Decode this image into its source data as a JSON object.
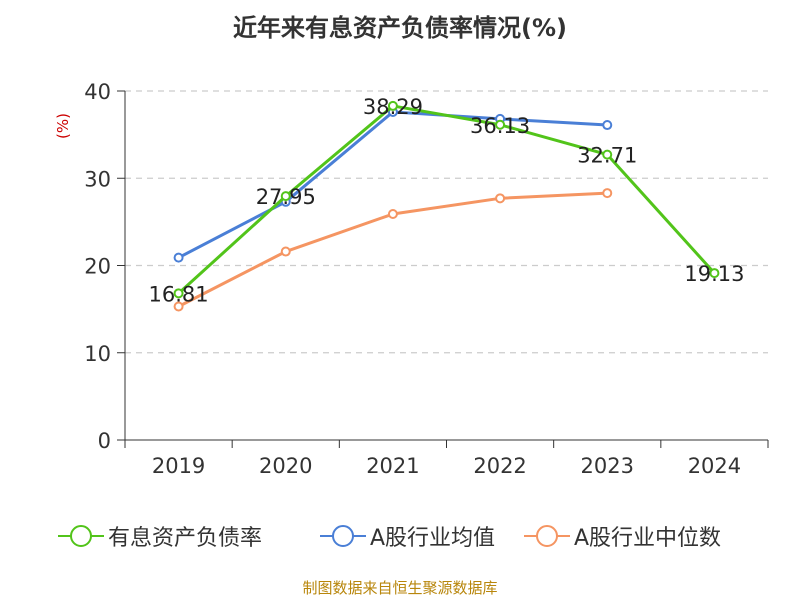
{
  "title": "近年来有息资产负债率情况(%)",
  "source": "制图数据来自恒生聚源数据库",
  "chart_data": {
    "type": "line",
    "title": "近年来有息资产负债率情况(%)",
    "ylabel": "(%)",
    "ylim": [
      0,
      40
    ],
    "yticks": [
      "0",
      "10",
      "20",
      "30",
      "40"
    ],
    "categories": [
      "2019",
      "2020",
      "2021",
      "2022",
      "2023",
      "2024"
    ],
    "grid": "horizontal dashed",
    "legend_position": "bottom",
    "series": [
      {
        "name": "有息资产负债率",
        "color": "#52c41a",
        "values": [
          16.81,
          27.95,
          38.29,
          36.13,
          32.71,
          19.13
        ],
        "labels": [
          "16.81",
          "27.95",
          "38.29",
          "36.13",
          "32.71",
          "19.13"
        ]
      },
      {
        "name": "A股行业均值",
        "color": "#4a7fd6",
        "values": [
          20.9,
          27.3,
          37.6,
          36.8,
          36.1,
          null
        ]
      },
      {
        "name": "A股行业中位数",
        "color": "#f59562",
        "values": [
          15.3,
          21.6,
          25.9,
          27.7,
          28.3,
          null
        ]
      }
    ]
  }
}
